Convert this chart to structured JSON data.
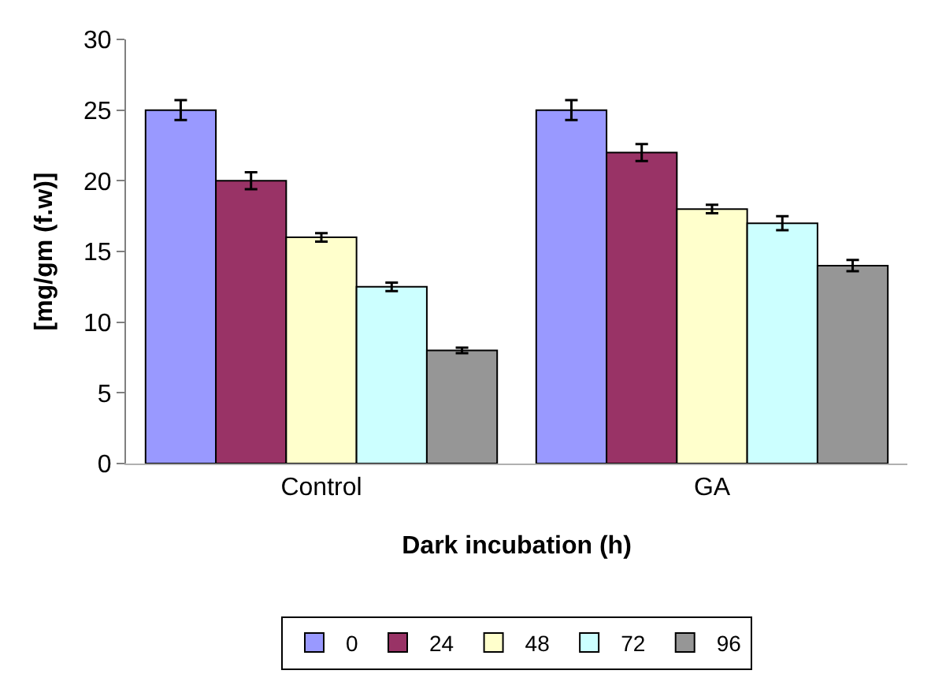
{
  "chart_data": {
    "type": "bar",
    "categories": [
      "Control",
      "GA"
    ],
    "xlabel": "Dark incubation (h)",
    "ylabel": "[mg/gm (f.w)]",
    "ylim": [
      0,
      30
    ],
    "yticks": [
      0,
      5,
      10,
      15,
      20,
      25,
      30
    ],
    "grid": false,
    "legend": "bottom",
    "series": [
      {
        "name": "0",
        "color": "#9999ff",
        "values": [
          25,
          25
        ],
        "errors": [
          0.7,
          0.7
        ]
      },
      {
        "name": "24",
        "color": "#993366",
        "values": [
          20,
          22
        ],
        "errors": [
          0.6,
          0.6
        ]
      },
      {
        "name": "48",
        "color": "#ffffcc",
        "values": [
          16,
          18
        ],
        "errors": [
          0.3,
          0.3
        ]
      },
      {
        "name": "72",
        "color": "#ccffff",
        "values": [
          12.5,
          17
        ],
        "errors": [
          0.3,
          0.5
        ]
      },
      {
        "name": "96",
        "color": "#969696",
        "values": [
          8,
          14
        ],
        "errors": [
          0.2,
          0.4
        ]
      }
    ]
  }
}
